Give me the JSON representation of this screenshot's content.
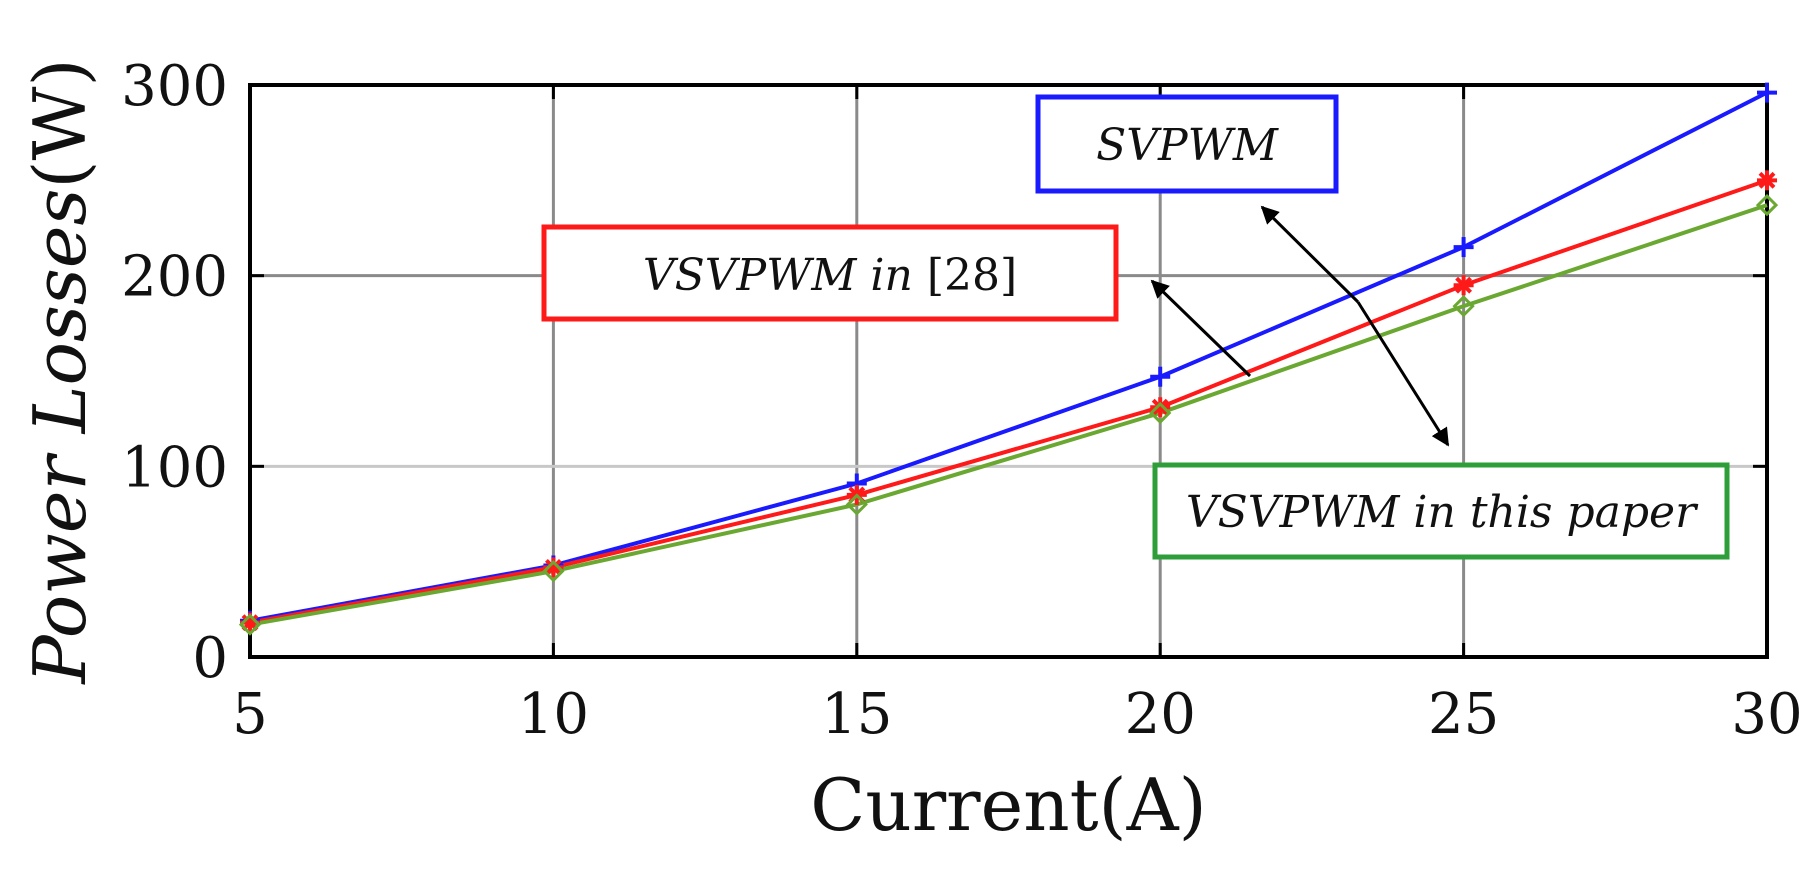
{
  "chart_data": {
    "type": "line",
    "xlabel": "Current(A)",
    "ylabel": "Power Losses(W)",
    "xlim": [
      5,
      30
    ],
    "ylim": [
      0,
      300
    ],
    "xticks": [
      5,
      10,
      15,
      20,
      25,
      30
    ],
    "yticks": [
      0,
      100,
      200,
      300
    ],
    "grid": true,
    "x": [
      5,
      10,
      15,
      20,
      25,
      30
    ],
    "series": [
      {
        "name": "SVPWM",
        "label_text": "SVPWM",
        "color": "#1a1aff",
        "marker": "plus",
        "values": [
          19,
          48,
          91,
          147,
          215,
          296
        ]
      },
      {
        "name": "VSVPWM in [28]",
        "label_text": "VSVPWM in ",
        "label_ref": "[28]",
        "color": "#ff1a1a",
        "marker": "asterisk",
        "values": [
          18,
          47,
          85,
          131,
          195,
          250
        ]
      },
      {
        "name": "VSVPWM in this paper",
        "label_text": "VSVPWM in this paper",
        "color": "#6aa832",
        "box_color": "#2e9e3a",
        "marker": "diamond",
        "values": [
          17,
          45,
          80,
          128,
          184,
          237
        ]
      }
    ]
  }
}
